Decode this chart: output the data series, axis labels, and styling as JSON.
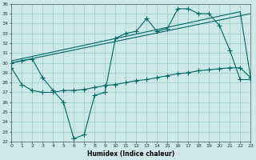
{
  "xlabel": "Humidex (Indice chaleur)",
  "bg_color": "#cce8e8",
  "grid_color": "#99cccc",
  "line_color": "#006666",
  "xlim": [
    0,
    23
  ],
  "ylim": [
    22,
    36
  ],
  "xticks": [
    0,
    1,
    2,
    3,
    4,
    5,
    6,
    7,
    8,
    9,
    10,
    11,
    12,
    13,
    14,
    15,
    16,
    17,
    18,
    19,
    20,
    21,
    22,
    23
  ],
  "yticks": [
    22,
    23,
    24,
    25,
    26,
    27,
    28,
    29,
    30,
    31,
    32,
    33,
    34,
    35,
    36
  ],
  "trend1_x": [
    0,
    23
  ],
  "trend1_y": [
    30.0,
    35.0
  ],
  "trend2_x": [
    0,
    22,
    23
  ],
  "trend2_y": [
    30.2,
    35.2,
    28.5
  ],
  "upper_x": [
    0,
    1,
    2,
    3,
    4,
    5,
    6,
    7,
    8,
    9,
    10,
    11,
    12,
    13,
    14,
    15,
    16,
    17,
    18,
    19,
    20,
    21,
    22,
    23
  ],
  "upper_y": [
    30.0,
    30.2,
    30.4,
    28.5,
    27.2,
    26.0,
    22.3,
    22.7,
    26.7,
    27.0,
    32.5,
    33.0,
    33.2,
    34.5,
    33.2,
    33.5,
    35.5,
    35.5,
    35.0,
    35.0,
    33.8,
    31.3,
    28.3,
    28.3
  ],
  "lower_x": [
    0,
    1,
    2,
    3,
    4,
    5,
    6,
    7,
    8,
    9,
    10,
    11,
    12,
    13,
    14,
    15,
    16,
    17,
    18,
    19,
    20,
    21,
    22,
    23
  ],
  "lower_y": [
    29.5,
    27.8,
    27.2,
    27.0,
    27.0,
    27.2,
    27.2,
    27.3,
    27.5,
    27.7,
    27.8,
    28.0,
    28.2,
    28.3,
    28.5,
    28.7,
    28.9,
    29.0,
    29.2,
    29.3,
    29.4,
    29.5,
    29.5,
    28.5
  ]
}
